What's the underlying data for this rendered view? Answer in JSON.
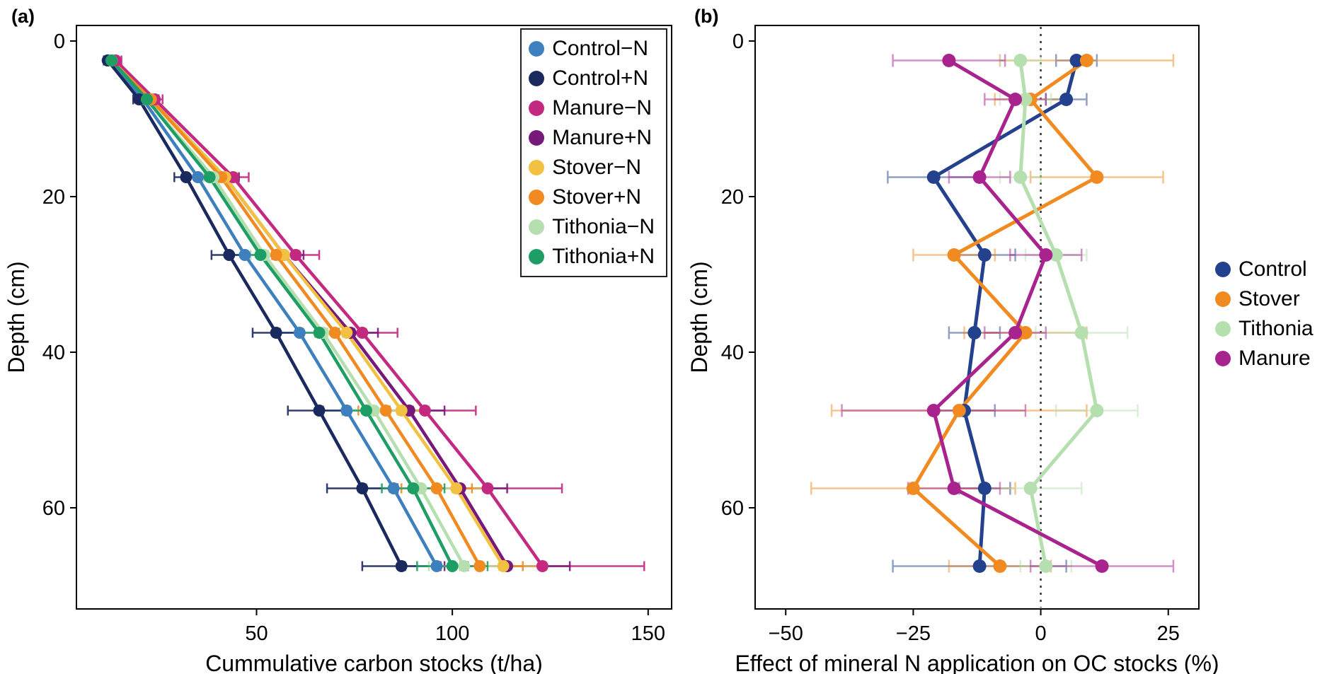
{
  "figure": {
    "panel_a_tag": "(a)",
    "panel_b_tag": "(b)",
    "background": "#ffffff",
    "axis_color": "#000000"
  },
  "chart_data": [
    {
      "type": "line",
      "panel": "a",
      "title": "",
      "xlabel": "Cummulative carbon stocks (t/ha)",
      "ylabel": "Depth (cm)",
      "xlim": [
        4,
        156
      ],
      "xticks": [
        50,
        100,
        150
      ],
      "ylim": [
        -2,
        73
      ],
      "yticks": [
        0,
        20,
        40,
        60
      ],
      "y_axis": "depth-downward",
      "grid": false,
      "legend_position": "top-right-inside",
      "depths": [
        2.5,
        7.5,
        17.5,
        27.5,
        37.5,
        47.5,
        57.5,
        67.5
      ],
      "series": [
        {
          "id": "control-minus-n",
          "name": "Control−N",
          "color": "#3E7FBE",
          "values": [
            12,
            21,
            35,
            47,
            61,
            73,
            85,
            96
          ],
          "errors": [
            1,
            1.5,
            2.5,
            3.5,
            5,
            6,
            7,
            8
          ]
        },
        {
          "id": "control-plus-n",
          "name": "Control+N",
          "color": "#1B2A5E",
          "values": [
            12,
            20,
            32,
            43,
            55,
            66,
            77,
            87
          ],
          "errors": [
            1,
            1.5,
            3,
            4.5,
            6,
            8,
            9,
            10
          ]
        },
        {
          "id": "manure-minus-n",
          "name": "Manure−N",
          "color": "#C42982",
          "values": [
            14,
            24,
            44,
            60,
            77,
            93,
            109,
            123
          ],
          "errors": [
            1.5,
            2,
            4,
            6,
            9,
            13,
            19,
            26
          ]
        },
        {
          "id": "manure-plus-n",
          "name": "Manure+N",
          "color": "#77187B",
          "values": [
            13,
            23,
            42,
            57,
            74,
            89,
            102,
            114
          ],
          "errors": [
            1.5,
            2,
            3.5,
            5,
            7,
            9,
            12,
            16
          ]
        },
        {
          "id": "stover-minus-n",
          "name": "Stover−N",
          "color": "#F2C141",
          "values": [
            13,
            23,
            42,
            57,
            73,
            87,
            101,
            113
          ],
          "errors": [
            1,
            1.5,
            3,
            4,
            5,
            7,
            9,
            11
          ]
        },
        {
          "id": "stover-plus-n",
          "name": "Stover+N",
          "color": "#F08A21",
          "values": [
            13,
            23,
            41,
            55,
            70,
            83,
            96,
            107
          ],
          "errors": [
            1,
            1.5,
            3,
            4,
            5,
            7,
            9,
            11
          ]
        },
        {
          "id": "tithonia-minus-n",
          "name": "Tithonia−N",
          "color": "#B6DFB0",
          "values": [
            13,
            22,
            39,
            52,
            67,
            80,
            92,
            103
          ],
          "errors": [
            1,
            1.5,
            2.5,
            3.5,
            5,
            6,
            8,
            9
          ]
        },
        {
          "id": "tithonia-plus-n",
          "name": "Tithonia+N",
          "color": "#1E9E64",
          "values": [
            13,
            22,
            38,
            51,
            66,
            78,
            90,
            100
          ],
          "errors": [
            1,
            1.5,
            2.5,
            3.5,
            5,
            6,
            8,
            9
          ]
        }
      ]
    },
    {
      "type": "line",
      "panel": "b",
      "title": "",
      "xlabel": "Effect of mineral N application on OC stocks (%)",
      "ylabel": "Depth (cm)",
      "xlim": [
        -56,
        31
      ],
      "xticks": [
        -50,
        -25,
        0,
        25
      ],
      "ylim": [
        -2,
        73
      ],
      "yticks": [
        0,
        20,
        40,
        60
      ],
      "y_axis": "depth-downward",
      "grid": false,
      "zero_line": true,
      "legend_position": "right-outside",
      "depths": [
        2.5,
        7.5,
        17.5,
        27.5,
        37.5,
        47.5,
        57.5,
        67.5
      ],
      "series": [
        {
          "id": "control",
          "name": "Control",
          "color": "#24418E",
          "values": [
            7,
            5,
            -21,
            -11,
            -13,
            -15,
            -11,
            -12
          ],
          "errors": [
            4,
            4,
            9,
            6,
            5,
            6,
            5,
            17
          ]
        },
        {
          "id": "stover",
          "name": "Stover",
          "color": "#F08A21",
          "values": [
            9,
            -2,
            11,
            -17,
            -3,
            -16,
            -25,
            -8
          ],
          "errors": [
            17,
            7,
            13,
            8,
            12,
            25,
            20,
            10
          ]
        },
        {
          "id": "tithonia",
          "name": "Tithonia",
          "color": "#B6DFB0",
          "values": [
            -4,
            -3,
            -4,
            3,
            8,
            11,
            -2,
            1
          ],
          "errors": [
            4,
            5,
            4,
            6,
            9,
            8,
            10,
            5
          ]
        },
        {
          "id": "manure",
          "name": "Manure",
          "color": "#A8238E",
          "values": [
            -18,
            -5,
            -12,
            1,
            -5,
            -21,
            -17,
            12
          ],
          "errors": [
            11,
            6,
            6,
            7,
            6,
            18,
            9,
            14
          ]
        }
      ]
    }
  ]
}
